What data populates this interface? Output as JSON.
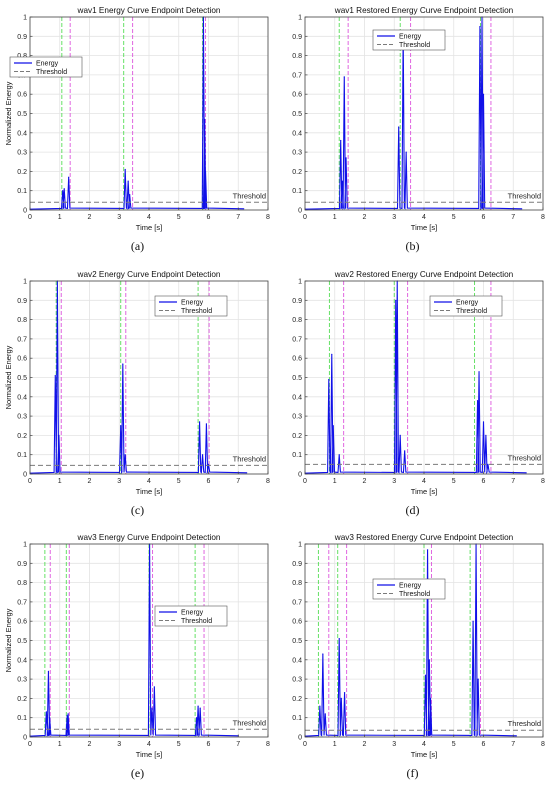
{
  "chart_data": [
    {
      "type": "line",
      "caption": "(a)",
      "title": "wav1 Energy Curve Endpoint Detection",
      "xlabel": "Time [s]",
      "ylabel": "Normalized Energy",
      "xlim": [
        0,
        8
      ],
      "ylim": [
        0,
        1
      ],
      "xticks": [
        "0",
        "1",
        "2",
        "3",
        "4",
        "5",
        "6",
        "7",
        "8"
      ],
      "yticks": [
        "0",
        "0.1",
        "0.2",
        "0.3",
        "0.4",
        "0.5",
        "0.6",
        "0.7",
        "0.8",
        "0.9",
        "1"
      ],
      "grid": true,
      "legend": {
        "position": "middle-left",
        "entries": [
          "Energy",
          "Threshold"
        ]
      },
      "threshold": 0.04,
      "threshold_label": "Threshold",
      "start_lines": [
        1.07,
        3.15,
        5.8
      ],
      "end_lines": [
        1.35,
        3.45,
        5.9
      ],
      "series": [
        {
          "name": "Energy",
          "points": [
            [
              1.1,
              0.1
            ],
            [
              1.15,
              0.11
            ],
            [
              1.3,
              0.17
            ],
            [
              3.2,
              0.21
            ],
            [
              3.3,
              0.15
            ],
            [
              3.35,
              0.08
            ],
            [
              5.83,
              1.0
            ],
            [
              5.87,
              0.47
            ],
            [
              5.9,
              0.2
            ]
          ]
        }
      ]
    },
    {
      "type": "line",
      "caption": "(b)",
      "title": "wav1 Restored Energy Curve Endpoint Detection",
      "xlabel": "Time [s]",
      "ylabel": "",
      "xlim": [
        0,
        8
      ],
      "ylim": [
        0,
        1
      ],
      "xticks": [
        "0",
        "1",
        "2",
        "3",
        "4",
        "5",
        "6",
        "7",
        "8"
      ],
      "yticks": [
        "0",
        "0.1",
        "0.2",
        "0.3",
        "0.4",
        "0.5",
        "0.6",
        "0.7",
        "0.8",
        "0.9",
        "1"
      ],
      "grid": true,
      "legend": {
        "position": "top-center",
        "entries": [
          "Energy",
          "Threshold"
        ]
      },
      "threshold": 0.04,
      "threshold_label": "Threshold",
      "start_lines": [
        1.15,
        3.2,
        5.9
      ],
      "end_lines": [
        1.45,
        3.55,
        6.25
      ],
      "series": [
        {
          "name": "Energy",
          "points": [
            [
              1.2,
              0.36
            ],
            [
              1.25,
              0.15
            ],
            [
              1.32,
              0.69
            ],
            [
              1.38,
              0.27
            ],
            [
              3.15,
              0.43
            ],
            [
              3.3,
              0.93
            ],
            [
              3.4,
              0.3
            ],
            [
              5.88,
              0.95
            ],
            [
              5.95,
              1.0
            ],
            [
              6.0,
              0.6
            ]
          ]
        }
      ]
    },
    {
      "type": "line",
      "caption": "(c)",
      "title": "wav2 Energy Curve Endpoint Detection",
      "xlabel": "Time [s]",
      "ylabel": "Normalized Energy",
      "xlim": [
        0,
        8
      ],
      "ylim": [
        0,
        1
      ],
      "xticks": [
        "0",
        "1",
        "2",
        "3",
        "4",
        "5",
        "6",
        "7",
        "8"
      ],
      "yticks": [
        "0",
        "0.1",
        "0.2",
        "0.3",
        "0.4",
        "0.5",
        "0.6",
        "0.7",
        "0.8",
        "0.9",
        "1"
      ],
      "grid": true,
      "legend": {
        "position": "upper-right",
        "entries": [
          "Energy",
          "Threshold"
        ]
      },
      "threshold": 0.045,
      "threshold_label": "Threshold",
      "start_lines": [
        0.88,
        3.05,
        5.65
      ],
      "end_lines": [
        1.05,
        3.22,
        6.02
      ],
      "series": [
        {
          "name": "Energy",
          "points": [
            [
              0.85,
              0.51
            ],
            [
              0.92,
              1.0
            ],
            [
              0.97,
              0.2
            ],
            [
              3.05,
              0.25
            ],
            [
              3.12,
              0.57
            ],
            [
              3.2,
              0.1
            ],
            [
              5.7,
              0.27
            ],
            [
              5.8,
              0.1
            ],
            [
              5.93,
              0.26
            ],
            [
              6.0,
              0.05
            ]
          ]
        }
      ]
    },
    {
      "type": "line",
      "caption": "(d)",
      "title": "wav2 Restored Energy Curve Endpoint Detection",
      "xlabel": "Time [s]",
      "ylabel": "",
      "xlim": [
        0,
        8
      ],
      "ylim": [
        0,
        1
      ],
      "xticks": [
        "0",
        "1",
        "2",
        "3",
        "4",
        "5",
        "6",
        "7",
        "8"
      ],
      "yticks": [
        "0",
        "0.1",
        "0.2",
        "0.3",
        "0.4",
        "0.5",
        "0.6",
        "0.7",
        "0.8",
        "0.9",
        "1"
      ],
      "grid": true,
      "legend": {
        "position": "upper-right",
        "entries": [
          "Energy",
          "Threshold"
        ]
      },
      "threshold": 0.05,
      "threshold_label": "Threshold",
      "start_lines": [
        0.82,
        3.0,
        5.7
      ],
      "end_lines": [
        1.3,
        3.45,
        6.25
      ],
      "series": [
        {
          "name": "Energy",
          "points": [
            [
              0.8,
              0.49
            ],
            [
              0.9,
              0.62
            ],
            [
              0.95,
              0.25
            ],
            [
              1.15,
              0.1
            ],
            [
              3.05,
              0.9
            ],
            [
              3.1,
              1.0
            ],
            [
              3.2,
              0.2
            ],
            [
              3.35,
              0.12
            ],
            [
              5.8,
              0.38
            ],
            [
              5.85,
              0.53
            ],
            [
              6.0,
              0.27
            ],
            [
              6.08,
              0.2
            ],
            [
              6.15,
              0.05
            ]
          ]
        }
      ]
    },
    {
      "type": "line",
      "caption": "(e)",
      "title": "wav3 Energy Curve Endpoint Detection",
      "xlabel": "Time [s]",
      "ylabel": "Normalized Energy",
      "xlim": [
        0,
        8
      ],
      "ylim": [
        0,
        1
      ],
      "xticks": [
        "0",
        "1",
        "2",
        "3",
        "4",
        "5",
        "6",
        "7",
        "8"
      ],
      "yticks": [
        "0",
        "0.1",
        "0.2",
        "0.3",
        "0.4",
        "0.5",
        "0.6",
        "0.7",
        "0.8",
        "0.9",
        "1"
      ],
      "grid": true,
      "legend": {
        "position": "lower-right",
        "entries": [
          "Energy",
          "Threshold"
        ]
      },
      "threshold": 0.04,
      "threshold_label": "Threshold",
      "start_lines": [
        0.5,
        1.22,
        4.0,
        5.55
      ],
      "end_lines": [
        0.68,
        1.32,
        4.12,
        5.85
      ],
      "series": [
        {
          "name": "Energy",
          "points": [
            [
              0.55,
              0.13
            ],
            [
              0.62,
              0.34
            ],
            [
              0.66,
              0.1
            ],
            [
              1.25,
              0.11
            ],
            [
              1.28,
              0.12
            ],
            [
              4.02,
              1.0
            ],
            [
              4.1,
              0.15
            ],
            [
              4.18,
              0.26
            ],
            [
              5.6,
              0.1
            ],
            [
              5.65,
              0.16
            ],
            [
              5.72,
              0.15
            ]
          ]
        }
      ]
    },
    {
      "type": "line",
      "caption": "(f)",
      "title": "wav3 Restored Energy Curve Endpoint Detection",
      "xlabel": "Time [s]",
      "ylabel": "",
      "xlim": [
        0,
        8
      ],
      "ylim": [
        0,
        1
      ],
      "xticks": [
        "0",
        "1",
        "2",
        "3",
        "4",
        "5",
        "6",
        "7",
        "8"
      ],
      "yticks": [
        "0",
        "0.1",
        "0.2",
        "0.3",
        "0.4",
        "0.5",
        "0.6",
        "0.7",
        "0.8",
        "0.9",
        "1"
      ],
      "grid": true,
      "legend": {
        "position": "middle-center",
        "entries": [
          "Energy",
          "Threshold"
        ]
      },
      "threshold": 0.035,
      "threshold_label": "Threshold",
      "start_lines": [
        0.45,
        1.1,
        4.0,
        5.55
      ],
      "end_lines": [
        0.8,
        1.4,
        4.25,
        5.9
      ],
      "series": [
        {
          "name": "Energy",
          "points": [
            [
              0.5,
              0.16
            ],
            [
              0.6,
              0.43
            ],
            [
              0.68,
              0.12
            ],
            [
              1.15,
              0.51
            ],
            [
              1.22,
              0.2
            ],
            [
              1.33,
              0.23
            ],
            [
              4.05,
              0.32
            ],
            [
              4.12,
              0.97
            ],
            [
              4.18,
              0.4
            ],
            [
              4.22,
              0.2
            ],
            [
              5.65,
              0.6
            ],
            [
              5.75,
              1.0
            ],
            [
              5.82,
              0.3
            ]
          ]
        }
      ]
    }
  ],
  "colors": {
    "energy": "#1010e8",
    "threshold": "#7a7a7a",
    "start_line": "#55dd55",
    "end_line": "#dd55dd",
    "grid": "#e3e3e3",
    "axis": "#444444"
  }
}
